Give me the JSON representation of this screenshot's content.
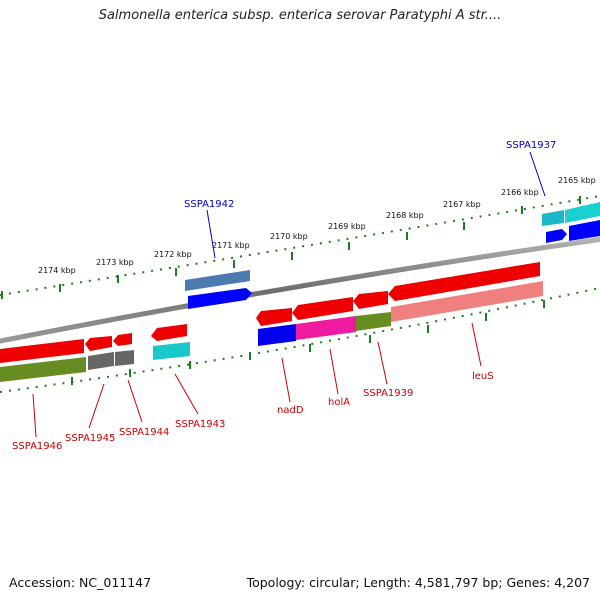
{
  "title": "Salmonella enterica subsp. enterica serovar Paratyphi A str....",
  "footer": {
    "accession_label": "Accession:",
    "accession": "NC_011147",
    "topology_label": "Topology:",
    "topology": "circular",
    "length_label": "Length:",
    "length": "4,581,797 bp",
    "genes_label": "Genes:",
    "genes": "4,207"
  },
  "colors": {
    "backbone": "#7a7a7a",
    "tick": "#1e7d1e",
    "forward_cds": "#ff0000",
    "reverse_cds": "#1010ff",
    "label_forward": "#0000cc",
    "label_reverse": "#cc0000"
  },
  "scale": {
    "labels": [
      "2174 kbp",
      "2173 kbp",
      "2172 kbp",
      "2171 kbp",
      "2170 kbp",
      "2169 kbp",
      "2168 kbp",
      "2167 kbp",
      "2166 kbp",
      "2165 kbp"
    ]
  },
  "gene_labels": {
    "SSPA1937": "SSPA1937",
    "SSPA1942": "SSPA1942",
    "SSPA1946": "SSPA1946",
    "SSPA1945": "SSPA1945",
    "SSPA1944": "SSPA1944",
    "SSPA1943": "SSPA1943",
    "nadD": "nadD",
    "holA": "holA",
    "SSPA1939": "SSPA1939",
    "leuS": "leuS"
  }
}
